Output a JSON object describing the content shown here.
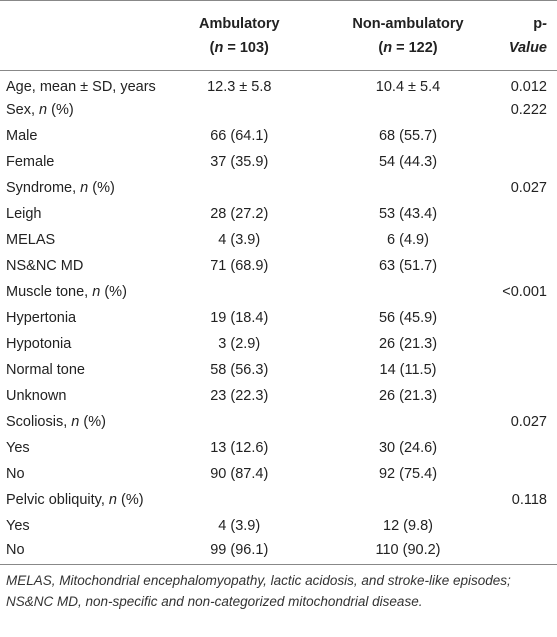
{
  "table": {
    "header": [
      null,
      {
        "title": "Ambulatory",
        "sub": [
          "(",
          "n",
          " = 103)"
        ]
      },
      {
        "title": "Non-ambulatory",
        "sub": [
          "(",
          "n",
          " = 122)"
        ]
      },
      {
        "title": [
          "p",
          "-Value"
        ]
      }
    ],
    "rows": [
      [
        [
          "Age, mean ± SD, years"
        ],
        "12.3 ± 5.8",
        "10.4 ± 5.4",
        "0.012"
      ],
      [
        [
          "Sex, ",
          "n",
          " (%)"
        ],
        null,
        null,
        "0.222"
      ],
      [
        [
          "Male"
        ],
        "66 (64.1)",
        "68 (55.7)",
        null
      ],
      [
        [
          "Female"
        ],
        "37 (35.9)",
        "54 (44.3)",
        null
      ],
      [
        [
          "Syndrome, ",
          "n",
          " (%)"
        ],
        null,
        null,
        "0.027"
      ],
      [
        [
          "Leigh"
        ],
        "28 (27.2)",
        "53 (43.4)",
        null
      ],
      [
        [
          "MELAS"
        ],
        "4 (3.9)",
        "6 (4.9)",
        null
      ],
      [
        [
          "NS&NC MD"
        ],
        "71 (68.9)",
        "63 (51.7)",
        null
      ],
      [
        [
          "Muscle tone, ",
          "n",
          " (%)"
        ],
        null,
        null,
        "<0.001"
      ],
      [
        [
          "Hypertonia"
        ],
        "19 (18.4)",
        "56 (45.9)",
        null
      ],
      [
        [
          "Hypotonia"
        ],
        "3 (2.9)",
        "26 (21.3)",
        null
      ],
      [
        [
          "Normal tone"
        ],
        "58 (56.3)",
        "14 (11.5)",
        null
      ],
      [
        [
          "Unknown"
        ],
        "23 (22.3)",
        "26 (21.3)",
        null
      ],
      [
        [
          "Scoliosis, ",
          "n",
          " (%)"
        ],
        null,
        null,
        "0.027"
      ],
      [
        [
          "Yes"
        ],
        "13 (12.6)",
        "30 (24.6)",
        null
      ],
      [
        [
          "No"
        ],
        "90 (87.4)",
        "92 (75.4)",
        null
      ],
      [
        [
          "Pelvic obliquity, ",
          "n",
          " (%)"
        ],
        null,
        null,
        "0.118"
      ],
      [
        [
          "Yes"
        ],
        "4 (3.9)",
        "12 (9.8)",
        null
      ],
      [
        [
          "No"
        ],
        "99 (96.1)",
        "110 (90.2)",
        null
      ]
    ]
  },
  "footnote": "MELAS, Mitochondrial encephalomyopathy, lactic acidosis, and stroke-like episodes; NS&NC MD, non-specific and non-categorized mitochondrial disease."
}
